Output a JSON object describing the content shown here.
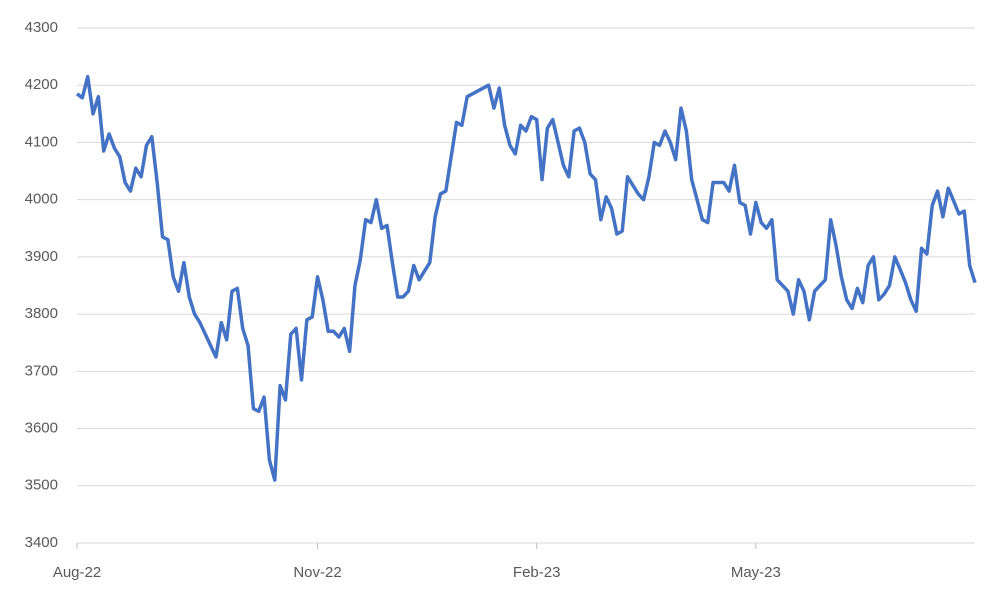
{
  "chart_data": {
    "type": "line",
    "categories": [
      "Aug-22",
      null,
      null,
      null,
      null,
      null,
      null,
      null,
      null,
      null,
      null,
      null,
      null,
      null,
      null,
      null,
      null,
      null,
      null,
      null,
      null,
      null,
      null,
      null,
      null,
      null,
      null,
      null,
      null,
      null,
      null,
      null,
      null,
      null,
      null,
      null,
      null,
      null,
      null,
      null,
      null,
      null,
      null,
      null,
      null,
      "Nov-22",
      null,
      null,
      null,
      null,
      null,
      null,
      null,
      null,
      null,
      null,
      null,
      null,
      null,
      null,
      null,
      null,
      null,
      null,
      null,
      null,
      null,
      null,
      null,
      null,
      null,
      null,
      null,
      null,
      null,
      null,
      null,
      null,
      null,
      null,
      null,
      null,
      null,
      null,
      null,
      null,
      "Feb-23",
      null,
      null,
      null,
      null,
      null,
      null,
      null,
      null,
      null,
      null,
      null,
      null,
      null,
      null,
      null,
      null,
      null,
      null,
      null,
      null,
      null,
      null,
      null,
      null,
      null,
      null,
      null,
      null,
      null,
      null,
      null,
      null,
      null,
      null,
      null,
      null,
      null,
      null,
      null,
      null,
      "May-23",
      null,
      null,
      null,
      null,
      null,
      null,
      null,
      null,
      null,
      null,
      null,
      null,
      null,
      null,
      null,
      null,
      null,
      null,
      null,
      null,
      null,
      null,
      null,
      null,
      null,
      null,
      null,
      null,
      null,
      null,
      null,
      null,
      null,
      null,
      null,
      null,
      null,
      null,
      null,
      null,
      null
    ],
    "series": [
      {
        "color": "#4472c4",
        "values": [
          4185,
          4178,
          4215,
          4150,
          4180,
          4085,
          4115,
          4090,
          4075,
          4030,
          4015,
          4055,
          4040,
          4095,
          4110,
          4030,
          3935,
          3930,
          3865,
          3840,
          3890,
          3830,
          3800,
          3785,
          3765,
          3745,
          3725,
          3785,
          3755,
          3840,
          3845,
          3775,
          3745,
          3635,
          3630,
          3655,
          3545,
          3510,
          3675,
          3650,
          3765,
          3775,
          3685,
          3790,
          3795,
          3865,
          3825,
          3770,
          3770,
          3760,
          3775,
          3735,
          3850,
          3895,
          3965,
          3960,
          4000,
          3950,
          3955,
          3890,
          3830,
          3830,
          3840,
          3885,
          3860,
          3875,
          3890,
          3970,
          4010,
          4015,
          4075,
          4135,
          4130,
          4180,
          4185,
          4190,
          4195,
          4200,
          4160,
          4195,
          4130,
          4095,
          4080,
          4130,
          4120,
          4145,
          4140,
          4035,
          4125,
          4140,
          4100,
          4060,
          4040,
          4120,
          4125,
          4100,
          4045,
          4035,
          3965,
          4005,
          3985,
          3940,
          3945,
          4040,
          4025,
          4010,
          4000,
          4040,
          4100,
          4095,
          4120,
          4100,
          4070,
          4160,
          4120,
          4035,
          4000,
          3965,
          3960,
          4030,
          4030,
          4030,
          4015,
          4060,
          3995,
          3990,
          3940,
          3995,
          3960,
          3950,
          3965,
          3860,
          3850,
          3840,
          3800,
          3860,
          3840,
          3790,
          3840,
          3850,
          3860,
          3965,
          3920,
          3865,
          3825,
          3810,
          3845,
          3820,
          3885,
          3900,
          3825,
          3835,
          3850,
          3900,
          3878,
          3855,
          3825,
          3805,
          3915,
          3905,
          3990,
          4015,
          3970,
          4020,
          3998,
          3975,
          3980,
          3885,
          3855
        ]
      }
    ],
    "ylim": [
      3400,
      4300
    ],
    "yticks": [
      3400,
      3500,
      3600,
      3700,
      3800,
      3900,
      4000,
      4100,
      4200,
      4300
    ],
    "grid": true
  }
}
